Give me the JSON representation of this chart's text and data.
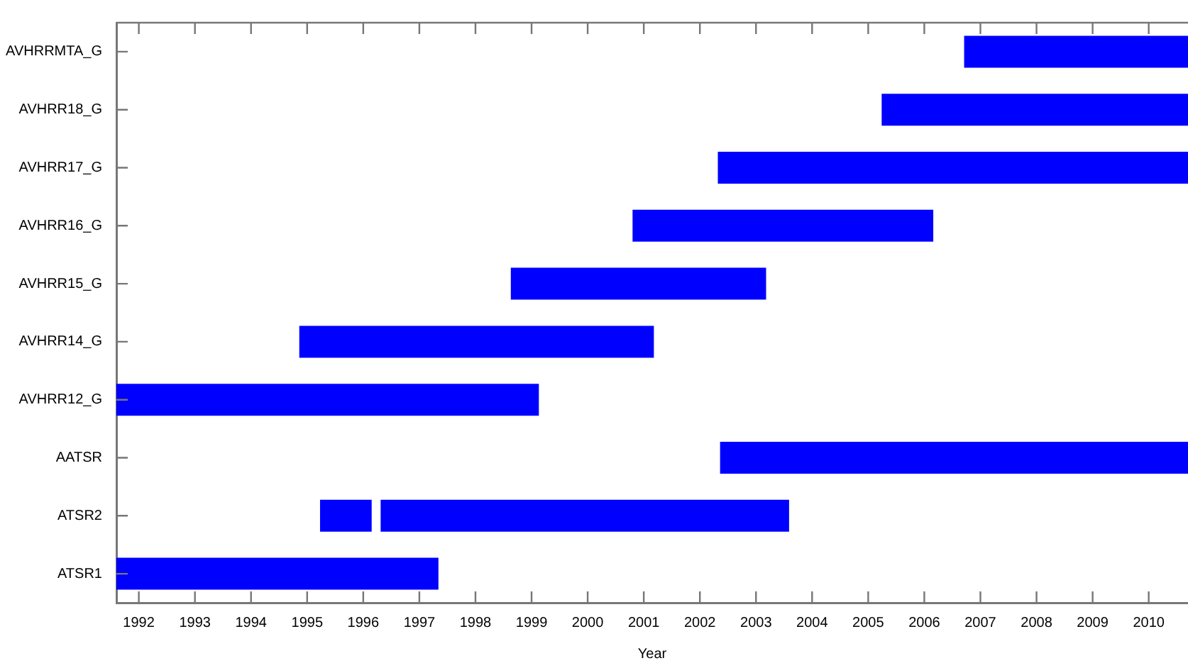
{
  "chart_data": {
    "type": "bar",
    "orientation": "horizontal",
    "xlabel": "Year",
    "categories": [
      "AVHRRMTA_G",
      "AVHRR18_G",
      "AVHRR17_G",
      "AVHRR16_G",
      "AVHRR15_G",
      "AVHRR14_G",
      "AVHRR12_G",
      "AATSR",
      "ATSR2",
      "ATSR1"
    ],
    "series": [
      {
        "color": "#0000ff",
        "base": [
          2006.71,
          2005.24,
          2002.32,
          2000.8,
          1998.63,
          1994.86,
          1991.6,
          2002.36,
          1995.23,
          1991.6
        ],
        "values": [
          3.99,
          5.46,
          8.38,
          5.36,
          4.55,
          6.32,
          7.53,
          8.34,
          0.92,
          5.74
        ]
      },
      {
        "color": "#0000ff",
        "base": [
          null,
          null,
          null,
          null,
          null,
          null,
          null,
          null,
          1996.31,
          null
        ],
        "values": [
          null,
          null,
          null,
          null,
          null,
          null,
          null,
          null,
          7.28,
          null
        ]
      }
    ],
    "xlim": [
      1991.6,
      2010.7
    ],
    "xticks": [
      1992,
      1993,
      1994,
      1995,
      1996,
      1997,
      1998,
      1999,
      2000,
      2001,
      2002,
      2003,
      2004,
      2005,
      2006,
      2007,
      2008,
      2009,
      2010
    ],
    "grid": false,
    "legend": false
  }
}
